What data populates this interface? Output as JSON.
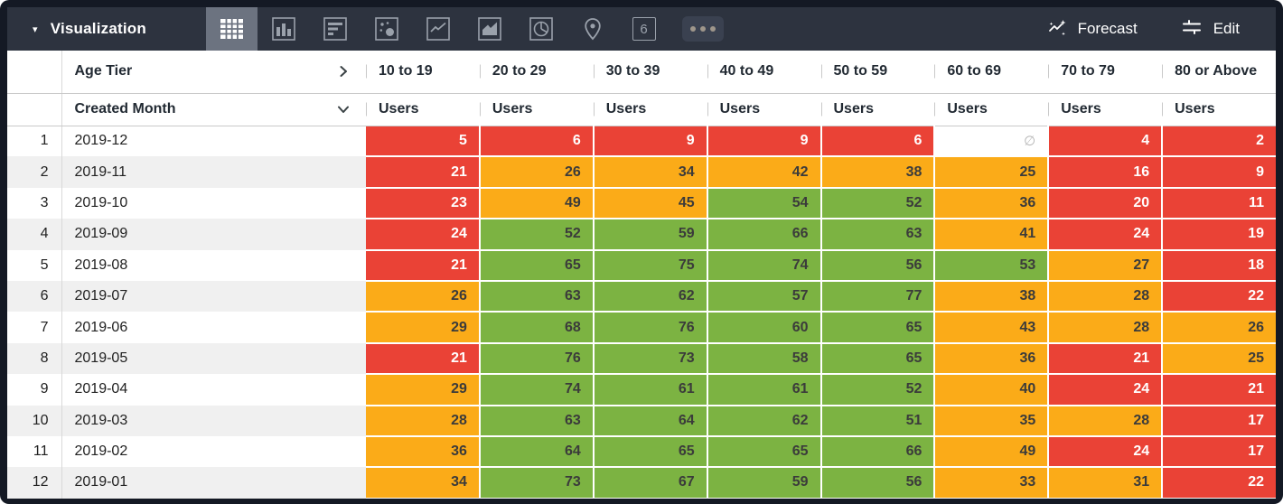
{
  "topbar": {
    "title": "Visualization",
    "forecast_label": "Forecast",
    "edit_label": "Edit",
    "single_value_glyph": "6",
    "icons": [
      "table",
      "bar-chart",
      "horizontal-bar-chart",
      "scatter",
      "line-chart",
      "area-chart",
      "pie-chart",
      "map-pin",
      "single-value",
      "more"
    ]
  },
  "table": {
    "pivot_label": "Age Tier",
    "dimension_label": "Created Month",
    "measure_label": "Users",
    "columns": [
      "10 to 19",
      "20 to 29",
      "30 to 39",
      "40 to 49",
      "50 to 59",
      "60 to 69",
      "70 to 79",
      "80 or Above"
    ],
    "null_symbol": "∅",
    "rows": [
      {
        "index": "1",
        "month": "2019-12",
        "cells": [
          {
            "v": "5",
            "c": "red"
          },
          {
            "v": "6",
            "c": "red"
          },
          {
            "v": "9",
            "c": "red"
          },
          {
            "v": "9",
            "c": "red"
          },
          {
            "v": "6",
            "c": "red"
          },
          {
            "v": null,
            "c": "null"
          },
          {
            "v": "4",
            "c": "red"
          },
          {
            "v": "2",
            "c": "red"
          }
        ]
      },
      {
        "index": "2",
        "month": "2019-11",
        "cells": [
          {
            "v": "21",
            "c": "red"
          },
          {
            "v": "26",
            "c": "orange"
          },
          {
            "v": "34",
            "c": "orange"
          },
          {
            "v": "42",
            "c": "orange"
          },
          {
            "v": "38",
            "c": "orange"
          },
          {
            "v": "25",
            "c": "orange"
          },
          {
            "v": "16",
            "c": "red"
          },
          {
            "v": "9",
            "c": "red"
          }
        ]
      },
      {
        "index": "3",
        "month": "2019-10",
        "cells": [
          {
            "v": "23",
            "c": "red"
          },
          {
            "v": "49",
            "c": "orange"
          },
          {
            "v": "45",
            "c": "orange"
          },
          {
            "v": "54",
            "c": "green"
          },
          {
            "v": "52",
            "c": "green"
          },
          {
            "v": "36",
            "c": "orange"
          },
          {
            "v": "20",
            "c": "red"
          },
          {
            "v": "11",
            "c": "red"
          }
        ]
      },
      {
        "index": "4",
        "month": "2019-09",
        "cells": [
          {
            "v": "24",
            "c": "red"
          },
          {
            "v": "52",
            "c": "green"
          },
          {
            "v": "59",
            "c": "green"
          },
          {
            "v": "66",
            "c": "green"
          },
          {
            "v": "63",
            "c": "green"
          },
          {
            "v": "41",
            "c": "orange"
          },
          {
            "v": "24",
            "c": "red"
          },
          {
            "v": "19",
            "c": "red"
          }
        ]
      },
      {
        "index": "5",
        "month": "2019-08",
        "cells": [
          {
            "v": "21",
            "c": "red"
          },
          {
            "v": "65",
            "c": "green"
          },
          {
            "v": "75",
            "c": "green"
          },
          {
            "v": "74",
            "c": "green"
          },
          {
            "v": "56",
            "c": "green"
          },
          {
            "v": "53",
            "c": "green"
          },
          {
            "v": "27",
            "c": "orange"
          },
          {
            "v": "18",
            "c": "red"
          }
        ]
      },
      {
        "index": "6",
        "month": "2019-07",
        "cells": [
          {
            "v": "26",
            "c": "orange"
          },
          {
            "v": "63",
            "c": "green"
          },
          {
            "v": "62",
            "c": "green"
          },
          {
            "v": "57",
            "c": "green"
          },
          {
            "v": "77",
            "c": "green"
          },
          {
            "v": "38",
            "c": "orange"
          },
          {
            "v": "28",
            "c": "orange"
          },
          {
            "v": "22",
            "c": "red"
          }
        ]
      },
      {
        "index": "7",
        "month": "2019-06",
        "cells": [
          {
            "v": "29",
            "c": "orange"
          },
          {
            "v": "68",
            "c": "green"
          },
          {
            "v": "76",
            "c": "green"
          },
          {
            "v": "60",
            "c": "green"
          },
          {
            "v": "65",
            "c": "green"
          },
          {
            "v": "43",
            "c": "orange"
          },
          {
            "v": "28",
            "c": "orange"
          },
          {
            "v": "26",
            "c": "orange"
          }
        ]
      },
      {
        "index": "8",
        "month": "2019-05",
        "cells": [
          {
            "v": "21",
            "c": "red"
          },
          {
            "v": "76",
            "c": "green"
          },
          {
            "v": "73",
            "c": "green"
          },
          {
            "v": "58",
            "c": "green"
          },
          {
            "v": "65",
            "c": "green"
          },
          {
            "v": "36",
            "c": "orange"
          },
          {
            "v": "21",
            "c": "red"
          },
          {
            "v": "25",
            "c": "orange"
          }
        ]
      },
      {
        "index": "9",
        "month": "2019-04",
        "cells": [
          {
            "v": "29",
            "c": "orange"
          },
          {
            "v": "74",
            "c": "green"
          },
          {
            "v": "61",
            "c": "green"
          },
          {
            "v": "61",
            "c": "green"
          },
          {
            "v": "52",
            "c": "green"
          },
          {
            "v": "40",
            "c": "orange"
          },
          {
            "v": "24",
            "c": "red"
          },
          {
            "v": "21",
            "c": "red"
          }
        ]
      },
      {
        "index": "10",
        "month": "2019-03",
        "cells": [
          {
            "v": "28",
            "c": "orange"
          },
          {
            "v": "63",
            "c": "green"
          },
          {
            "v": "64",
            "c": "green"
          },
          {
            "v": "62",
            "c": "green"
          },
          {
            "v": "51",
            "c": "green"
          },
          {
            "v": "35",
            "c": "orange"
          },
          {
            "v": "28",
            "c": "orange"
          },
          {
            "v": "17",
            "c": "red"
          }
        ]
      },
      {
        "index": "11",
        "month": "2019-02",
        "cells": [
          {
            "v": "36",
            "c": "orange"
          },
          {
            "v": "64",
            "c": "green"
          },
          {
            "v": "65",
            "c": "green"
          },
          {
            "v": "65",
            "c": "green"
          },
          {
            "v": "66",
            "c": "green"
          },
          {
            "v": "49",
            "c": "orange"
          },
          {
            "v": "24",
            "c": "red"
          },
          {
            "v": "17",
            "c": "red"
          }
        ]
      },
      {
        "index": "12",
        "month": "2019-01",
        "cells": [
          {
            "v": "34",
            "c": "orange"
          },
          {
            "v": "73",
            "c": "green"
          },
          {
            "v": "67",
            "c": "green"
          },
          {
            "v": "59",
            "c": "green"
          },
          {
            "v": "56",
            "c": "green"
          },
          {
            "v": "33",
            "c": "orange"
          },
          {
            "v": "31",
            "c": "orange"
          },
          {
            "v": "22",
            "c": "red"
          }
        ]
      }
    ]
  },
  "colors": {
    "red": "#ea4236",
    "orange": "#fbab18",
    "green": "#7cb342",
    "topbar": "#2d333f",
    "selected_icon_bg": "#6c7380",
    "value_text_light": "#ffffff",
    "value_text_dark": "#3b3b3b"
  }
}
